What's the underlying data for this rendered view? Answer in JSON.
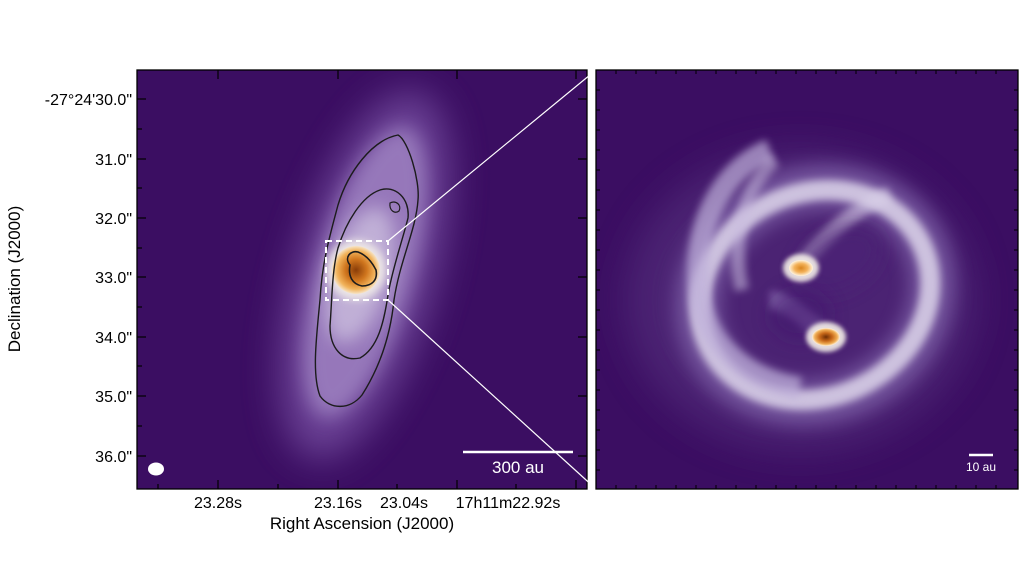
{
  "left_panel": {
    "ylabel": "Declination (J2000)",
    "xlabel": "Right Ascension (J2000)",
    "y_ticks": [
      "-27°24'30.0\"",
      "31.0\"",
      "32.0\"",
      "33.0\"",
      "34.0\"",
      "35.0\"",
      "36.0\""
    ],
    "x_ticks": [
      "23.28s",
      "23.16s",
      "23.04s",
      "17h11m22.92s"
    ],
    "scale_bar_label": "300 au",
    "beam_icon": "beam-ellipse"
  },
  "right_panel": {
    "scale_bar_label": "10 au"
  },
  "colors": {
    "background_purple": "#3b0e62",
    "contour": "#1c1c1c",
    "core_orange": "#e08a25",
    "ring_white": "#dcd6ea"
  }
}
